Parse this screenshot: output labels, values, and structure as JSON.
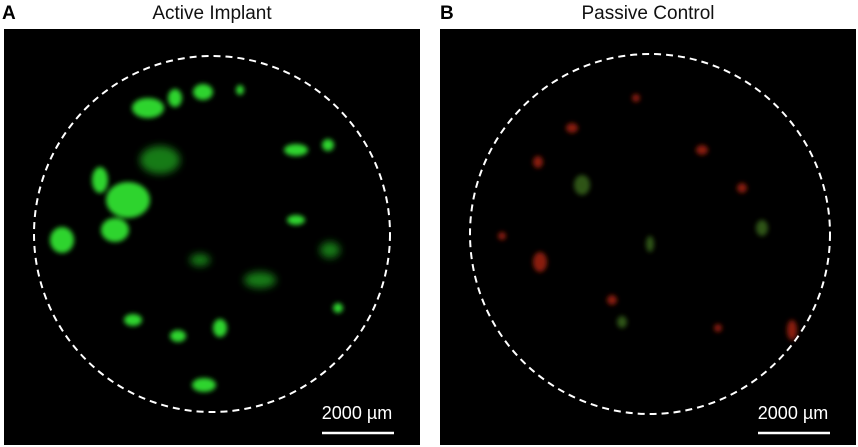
{
  "panels": [
    {
      "label": "A",
      "title": "Active Implant",
      "scale_bar": "2000 µm"
    },
    {
      "label": "B",
      "title": "Passive Control",
      "scale_bar": "2000 µm"
    }
  ]
}
